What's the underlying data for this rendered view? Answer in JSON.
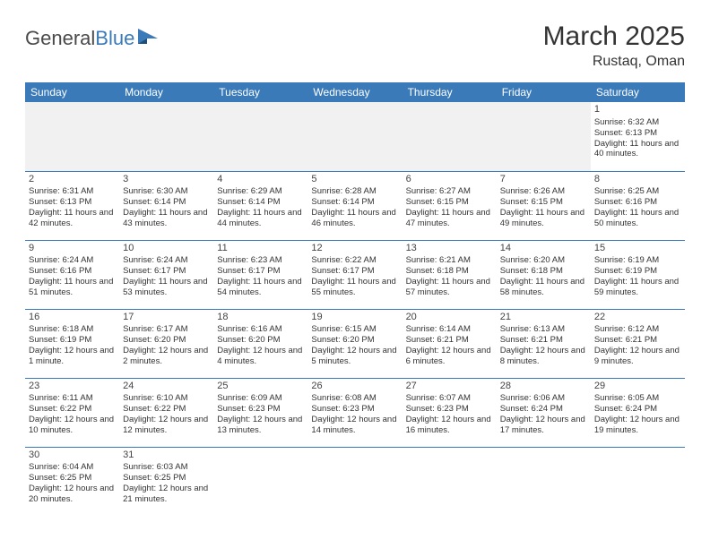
{
  "logo": {
    "text1": "General",
    "text2": "Blue"
  },
  "title": "March 2025",
  "location": "Rustaq, Oman",
  "colors": {
    "header_bg": "#3a7ab8",
    "header_text": "#ffffff",
    "row_divider": "#3a7ab8",
    "body_text": "#333333",
    "empty_row_bg": "#f1f1f1"
  },
  "weekdays": [
    "Sunday",
    "Monday",
    "Tuesday",
    "Wednesday",
    "Thursday",
    "Friday",
    "Saturday"
  ],
  "weeks": [
    [
      null,
      null,
      null,
      null,
      null,
      null,
      {
        "day": "1",
        "sunrise": "Sunrise: 6:32 AM",
        "sunset": "Sunset: 6:13 PM",
        "daylight": "Daylight: 11 hours and 40 minutes."
      }
    ],
    [
      {
        "day": "2",
        "sunrise": "Sunrise: 6:31 AM",
        "sunset": "Sunset: 6:13 PM",
        "daylight": "Daylight: 11 hours and 42 minutes."
      },
      {
        "day": "3",
        "sunrise": "Sunrise: 6:30 AM",
        "sunset": "Sunset: 6:14 PM",
        "daylight": "Daylight: 11 hours and 43 minutes."
      },
      {
        "day": "4",
        "sunrise": "Sunrise: 6:29 AM",
        "sunset": "Sunset: 6:14 PM",
        "daylight": "Daylight: 11 hours and 44 minutes."
      },
      {
        "day": "5",
        "sunrise": "Sunrise: 6:28 AM",
        "sunset": "Sunset: 6:14 PM",
        "daylight": "Daylight: 11 hours and 46 minutes."
      },
      {
        "day": "6",
        "sunrise": "Sunrise: 6:27 AM",
        "sunset": "Sunset: 6:15 PM",
        "daylight": "Daylight: 11 hours and 47 minutes."
      },
      {
        "day": "7",
        "sunrise": "Sunrise: 6:26 AM",
        "sunset": "Sunset: 6:15 PM",
        "daylight": "Daylight: 11 hours and 49 minutes."
      },
      {
        "day": "8",
        "sunrise": "Sunrise: 6:25 AM",
        "sunset": "Sunset: 6:16 PM",
        "daylight": "Daylight: 11 hours and 50 minutes."
      }
    ],
    [
      {
        "day": "9",
        "sunrise": "Sunrise: 6:24 AM",
        "sunset": "Sunset: 6:16 PM",
        "daylight": "Daylight: 11 hours and 51 minutes."
      },
      {
        "day": "10",
        "sunrise": "Sunrise: 6:24 AM",
        "sunset": "Sunset: 6:17 PM",
        "daylight": "Daylight: 11 hours and 53 minutes."
      },
      {
        "day": "11",
        "sunrise": "Sunrise: 6:23 AM",
        "sunset": "Sunset: 6:17 PM",
        "daylight": "Daylight: 11 hours and 54 minutes."
      },
      {
        "day": "12",
        "sunrise": "Sunrise: 6:22 AM",
        "sunset": "Sunset: 6:17 PM",
        "daylight": "Daylight: 11 hours and 55 minutes."
      },
      {
        "day": "13",
        "sunrise": "Sunrise: 6:21 AM",
        "sunset": "Sunset: 6:18 PM",
        "daylight": "Daylight: 11 hours and 57 minutes."
      },
      {
        "day": "14",
        "sunrise": "Sunrise: 6:20 AM",
        "sunset": "Sunset: 6:18 PM",
        "daylight": "Daylight: 11 hours and 58 minutes."
      },
      {
        "day": "15",
        "sunrise": "Sunrise: 6:19 AM",
        "sunset": "Sunset: 6:19 PM",
        "daylight": "Daylight: 11 hours and 59 minutes."
      }
    ],
    [
      {
        "day": "16",
        "sunrise": "Sunrise: 6:18 AM",
        "sunset": "Sunset: 6:19 PM",
        "daylight": "Daylight: 12 hours and 1 minute."
      },
      {
        "day": "17",
        "sunrise": "Sunrise: 6:17 AM",
        "sunset": "Sunset: 6:20 PM",
        "daylight": "Daylight: 12 hours and 2 minutes."
      },
      {
        "day": "18",
        "sunrise": "Sunrise: 6:16 AM",
        "sunset": "Sunset: 6:20 PM",
        "daylight": "Daylight: 12 hours and 4 minutes."
      },
      {
        "day": "19",
        "sunrise": "Sunrise: 6:15 AM",
        "sunset": "Sunset: 6:20 PM",
        "daylight": "Daylight: 12 hours and 5 minutes."
      },
      {
        "day": "20",
        "sunrise": "Sunrise: 6:14 AM",
        "sunset": "Sunset: 6:21 PM",
        "daylight": "Daylight: 12 hours and 6 minutes."
      },
      {
        "day": "21",
        "sunrise": "Sunrise: 6:13 AM",
        "sunset": "Sunset: 6:21 PM",
        "daylight": "Daylight: 12 hours and 8 minutes."
      },
      {
        "day": "22",
        "sunrise": "Sunrise: 6:12 AM",
        "sunset": "Sunset: 6:21 PM",
        "daylight": "Daylight: 12 hours and 9 minutes."
      }
    ],
    [
      {
        "day": "23",
        "sunrise": "Sunrise: 6:11 AM",
        "sunset": "Sunset: 6:22 PM",
        "daylight": "Daylight: 12 hours and 10 minutes."
      },
      {
        "day": "24",
        "sunrise": "Sunrise: 6:10 AM",
        "sunset": "Sunset: 6:22 PM",
        "daylight": "Daylight: 12 hours and 12 minutes."
      },
      {
        "day": "25",
        "sunrise": "Sunrise: 6:09 AM",
        "sunset": "Sunset: 6:23 PM",
        "daylight": "Daylight: 12 hours and 13 minutes."
      },
      {
        "day": "26",
        "sunrise": "Sunrise: 6:08 AM",
        "sunset": "Sunset: 6:23 PM",
        "daylight": "Daylight: 12 hours and 14 minutes."
      },
      {
        "day": "27",
        "sunrise": "Sunrise: 6:07 AM",
        "sunset": "Sunset: 6:23 PM",
        "daylight": "Daylight: 12 hours and 16 minutes."
      },
      {
        "day": "28",
        "sunrise": "Sunrise: 6:06 AM",
        "sunset": "Sunset: 6:24 PM",
        "daylight": "Daylight: 12 hours and 17 minutes."
      },
      {
        "day": "29",
        "sunrise": "Sunrise: 6:05 AM",
        "sunset": "Sunset: 6:24 PM",
        "daylight": "Daylight: 12 hours and 19 minutes."
      }
    ],
    [
      {
        "day": "30",
        "sunrise": "Sunrise: 6:04 AM",
        "sunset": "Sunset: 6:25 PM",
        "daylight": "Daylight: 12 hours and 20 minutes."
      },
      {
        "day": "31",
        "sunrise": "Sunrise: 6:03 AM",
        "sunset": "Sunset: 6:25 PM",
        "daylight": "Daylight: 12 hours and 21 minutes."
      },
      null,
      null,
      null,
      null,
      null
    ]
  ]
}
